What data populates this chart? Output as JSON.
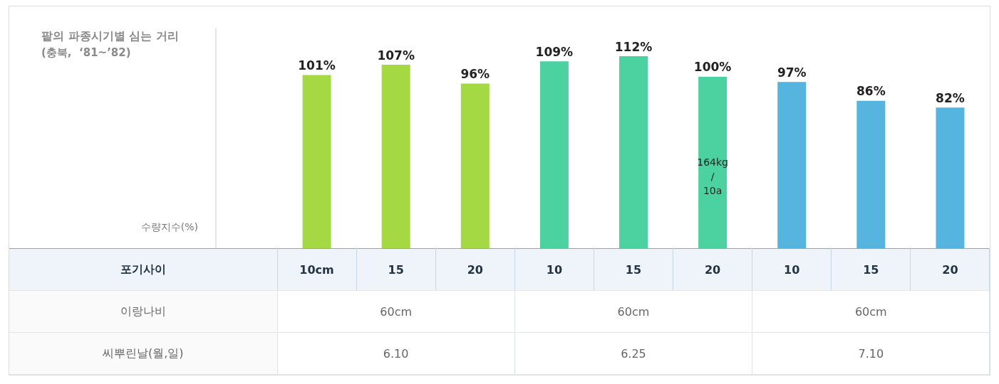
{
  "chart_data": {
    "type": "bar",
    "title": "팥의 파종시기별 심는 거리",
    "subtitle": "(충북,  ‘81~’82)",
    "categories": [
      "10cm",
      "15",
      "20",
      "10",
      "15",
      "20",
      "10",
      "15",
      "20"
    ],
    "values": [
      101,
      107,
      96,
      109,
      112,
      100,
      97,
      86,
      82
    ],
    "value_labels": [
      "101%",
      "107%",
      "96%",
      "109%",
      "112%",
      "100%",
      "97%",
      "86%",
      "82%"
    ],
    "colors": [
      "#a4d944",
      "#a4d944",
      "#a4d944",
      "#4cd1a0",
      "#4cd1a0",
      "#4cd1a0",
      "#55b5df",
      "#55b5df",
      "#55b5df"
    ],
    "annotations": [
      "수량지수(%)",
      "164kg / 10a",
      "포기사이",
      "이랑나비",
      "60cm",
      "60cm",
      "60cm",
      "씨뿌린날(월,일)",
      "6.10",
      "6.25",
      "7.10"
    ]
  }
}
